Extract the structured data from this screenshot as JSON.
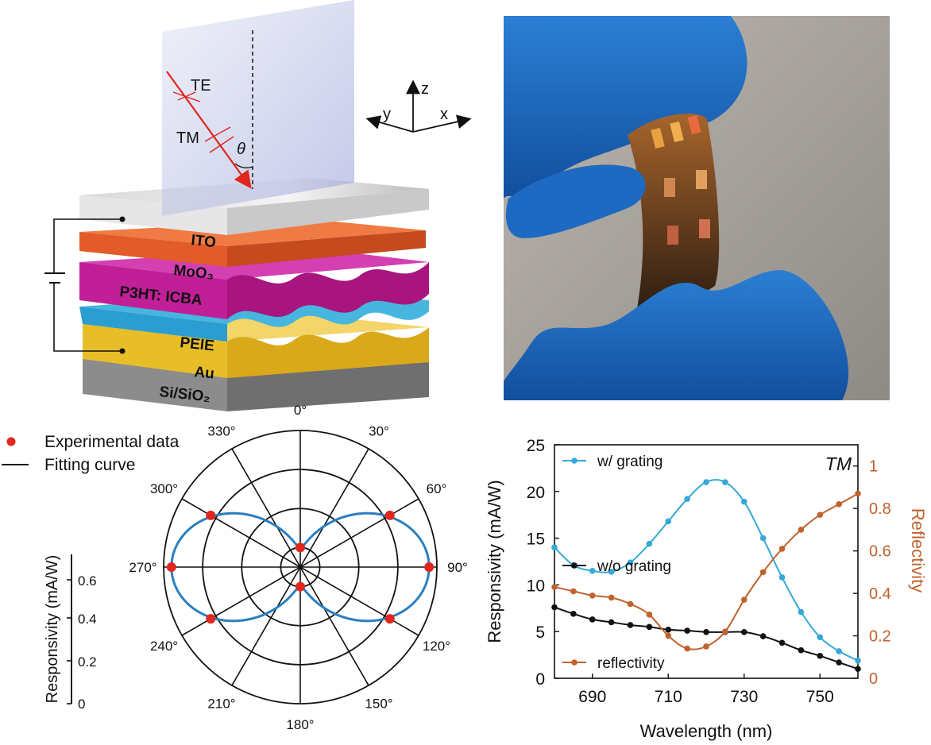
{
  "panel_a": {
    "layers": [
      "ITO",
      "MoO₃",
      "P3HT: ICBA",
      "PEIE",
      "Au",
      "Si/SiO₂"
    ],
    "polarization_labels": [
      "TE",
      "TM"
    ],
    "angle_symbol": "θ",
    "axes": [
      "z",
      "y",
      "x"
    ]
  },
  "panel_b": {
    "photo_description": "flexible photodetector device held by gloved fingers"
  },
  "panel_c": {
    "legend": [
      "Experimental data",
      "Fitting curve"
    ],
    "scale_label": "Responsivity (mA/W)",
    "scale_ticks": [
      "0",
      "0.2",
      "0.4",
      "0.6"
    ],
    "angle_labels": [
      "0°",
      "30°",
      "60°",
      "90°",
      "120°",
      "150°",
      "180°",
      "210°",
      "240°",
      "270°",
      "300°",
      "330°"
    ]
  },
  "chart_data": [
    {
      "type": "scatter",
      "title": "",
      "polar": true,
      "series": [
        {
          "name": "Experimental data",
          "angles_deg": [
            0,
            60,
            90,
            120,
            180,
            240,
            270,
            300
          ],
          "values": [
            0.1,
            0.53,
            0.66,
            0.53,
            0.1,
            0.53,
            0.66,
            0.53
          ]
        },
        {
          "name": "Fitting curve",
          "model": "r = r0 + a*sin^2(theta)",
          "r0": 0.1,
          "a": 0.56
        }
      ],
      "rlim": [
        0,
        0.7
      ],
      "rticks": [
        0,
        0.2,
        0.4,
        0.6
      ],
      "rlabel": "Responsivity (mA/W)"
    },
    {
      "type": "line",
      "title": "",
      "annotation": "TM",
      "xlabel": "Wavelength (nm)",
      "ylabel": "Responsivity (mA/W)",
      "y2label": "Reflectivity",
      "xlim": [
        680,
        760
      ],
      "ylim": [
        0,
        25
      ],
      "y2lim": [
        0,
        1.1
      ],
      "xticks": [
        690,
        710,
        730,
        750
      ],
      "yticks": [
        0,
        5,
        10,
        15,
        20,
        25
      ],
      "y2ticks": [
        "0",
        "0.2",
        "0.4",
        "0.6",
        "0.8",
        "1"
      ],
      "x": [
        680,
        685,
        690,
        695,
        700,
        705,
        710,
        715,
        720,
        725,
        730,
        735,
        740,
        745,
        750,
        755,
        760
      ],
      "series": [
        {
          "name": "w/ grating",
          "axis": "left",
          "color": "#35a8d8",
          "values": [
            14.0,
            12.1,
            11.5,
            11.4,
            12.4,
            14.4,
            16.8,
            19.2,
            21.0,
            21.0,
            18.9,
            15.0,
            10.8,
            7.1,
            4.4,
            2.9,
            1.9
          ]
        },
        {
          "name": "w/o grating",
          "axis": "left",
          "color": "#111111",
          "values": [
            7.6,
            6.9,
            6.3,
            6.0,
            5.7,
            5.5,
            5.2,
            5.1,
            4.95,
            4.95,
            4.95,
            4.5,
            3.8,
            3.0,
            2.4,
            1.7,
            1.0
          ]
        },
        {
          "name": "reflectivity",
          "axis": "right",
          "color": "#c0622d",
          "values": [
            0.43,
            0.41,
            0.39,
            0.38,
            0.35,
            0.3,
            0.2,
            0.14,
            0.15,
            0.22,
            0.37,
            0.5,
            0.61,
            0.7,
            0.77,
            0.82,
            0.87
          ]
        }
      ]
    }
  ]
}
